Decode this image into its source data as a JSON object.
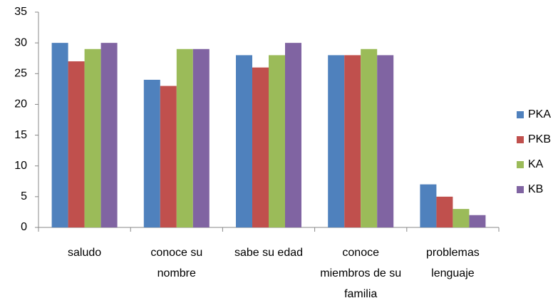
{
  "chart_data": {
    "type": "bar",
    "categories": [
      "saludo",
      "conoce su nombre",
      "sabe su edad",
      "conoce miembros de su familia",
      "problemas lenguaje"
    ],
    "series": [
      {
        "name": "PKA",
        "color": "#4f81bd",
        "values": [
          30,
          24,
          28,
          28,
          7
        ]
      },
      {
        "name": "PKB",
        "color": "#c0504d",
        "values": [
          27,
          23,
          26,
          28,
          5
        ]
      },
      {
        "name": "KA",
        "color": "#9bbb59",
        "values": [
          29,
          29,
          28,
          29,
          3
        ]
      },
      {
        "name": "KB",
        "color": "#8064a2",
        "values": [
          30,
          29,
          30,
          28,
          2
        ]
      }
    ],
    "ylim": [
      0,
      35
    ],
    "yticks": [
      0,
      5,
      10,
      15,
      20,
      25,
      30,
      35
    ],
    "grid": false,
    "legend": "right"
  }
}
